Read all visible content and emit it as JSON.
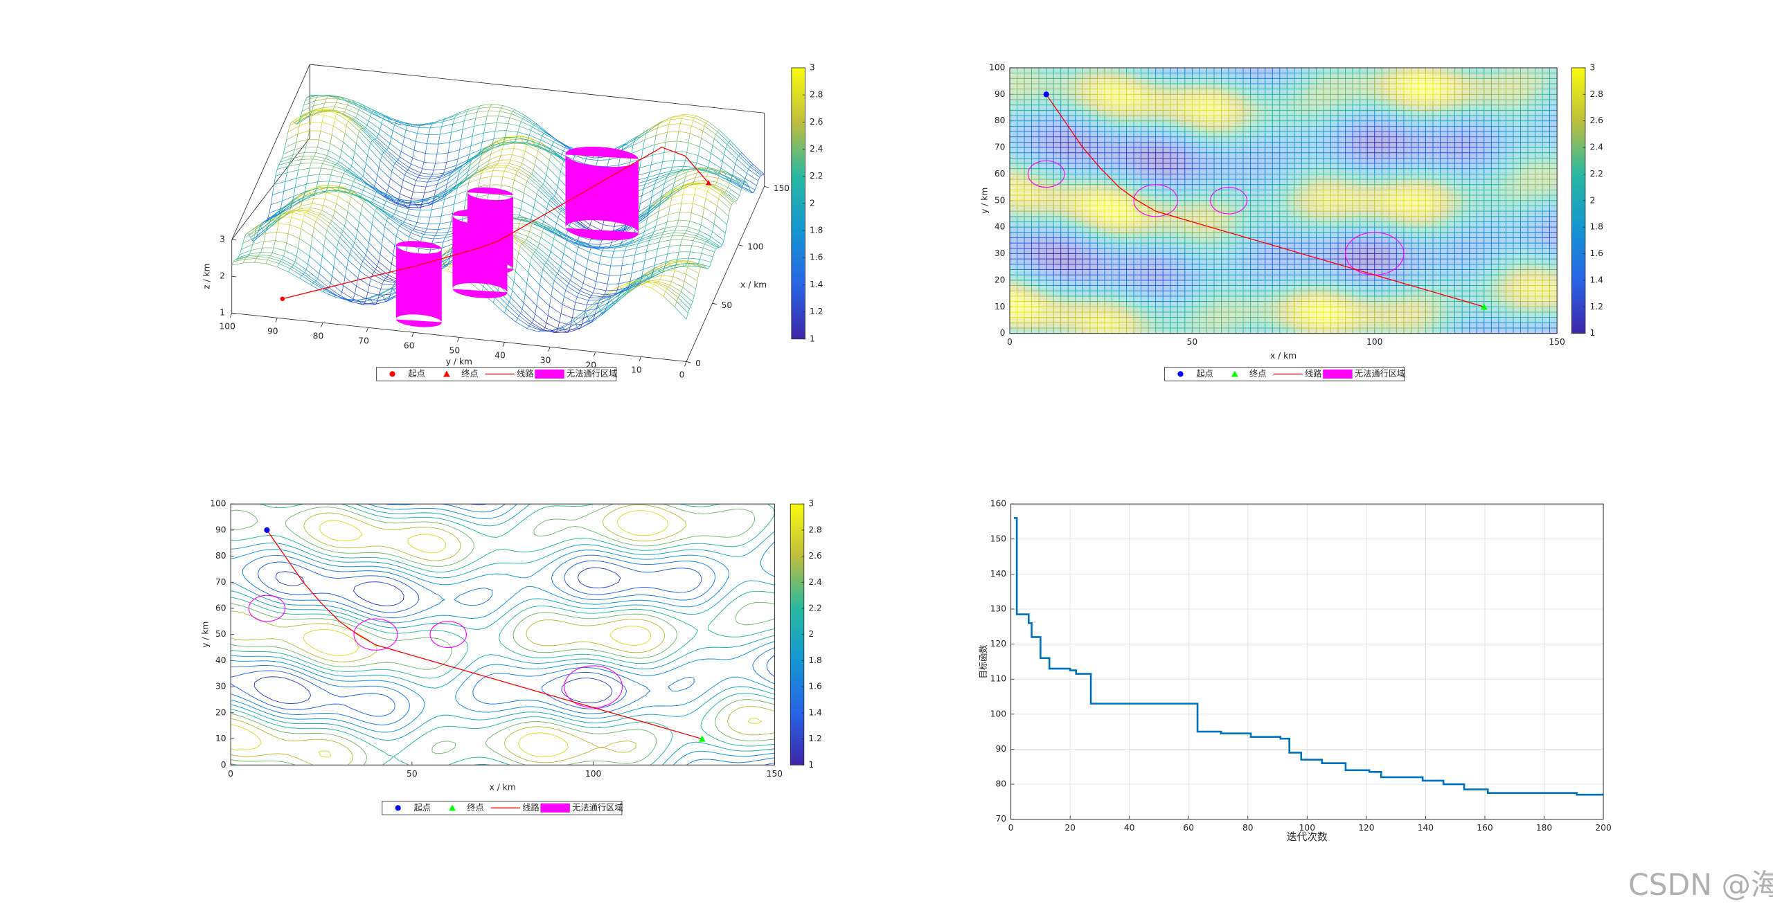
{
  "chart_data": [
    {
      "type": "surface3d",
      "xlabel": "x / km",
      "ylabel": "y / km",
      "zlabel": "z / km",
      "xlim": [
        0,
        150
      ],
      "ylim": [
        0,
        100
      ],
      "zlim": [
        1,
        3
      ],
      "xticks": [
        0,
        50,
        100,
        150
      ],
      "yticks": [
        0,
        10,
        20,
        30,
        40,
        50,
        60,
        70,
        80,
        90,
        100
      ],
      "zticks": [
        1,
        2,
        3
      ],
      "clim": [
        1,
        3
      ],
      "cticks": [
        1,
        1.2,
        1.4,
        1.6,
        1.8,
        2,
        2.2,
        2.4,
        2.6,
        2.8,
        3
      ],
      "start": {
        "name": "起点",
        "x": 10,
        "y": 90,
        "color": "#ff0000"
      },
      "end": {
        "name": "终点",
        "x": 130,
        "y": 10,
        "color": "#ff0000"
      },
      "route": {
        "name": "线路",
        "color": "#ff0000",
        "x": [
          10,
          15,
          20,
          25,
          30,
          35,
          40,
          50,
          60,
          70,
          80,
          90,
          100,
          110,
          120,
          130
        ],
        "y": [
          90,
          80,
          70,
          62,
          55,
          50,
          46,
          42,
          38,
          34,
          30,
          26,
          22,
          18,
          14,
          10
        ],
        "z": [
          1.2,
          1.5,
          1.8,
          2.0,
          2.2,
          2.3,
          2.4,
          2.5,
          2.6,
          2.7,
          2.8,
          2.9,
          3.0,
          3.1,
          2.6,
          1.6
        ]
      },
      "obstacles": {
        "name": "无法通行区域",
        "color": "#ff00ff",
        "circles": [
          {
            "x": 10,
            "y": 60,
            "r": 5
          },
          {
            "x": 40,
            "y": 50,
            "r": 6
          },
          {
            "x": 60,
            "y": 50,
            "r": 5
          },
          {
            "x": 100,
            "y": 30,
            "r": 8
          }
        ]
      }
    },
    {
      "type": "mesh2d",
      "xlabel": "x / km",
      "ylabel": "y / km",
      "xlim": [
        0,
        150
      ],
      "ylim": [
        0,
        100
      ],
      "xticks": [
        0,
        50,
        100,
        150
      ],
      "yticks": [
        0,
        10,
        20,
        30,
        40,
        50,
        60,
        70,
        80,
        90,
        100
      ],
      "clim": [
        1,
        3
      ],
      "cticks": [
        1,
        1.2,
        1.4,
        1.6,
        1.8,
        2,
        2.2,
        2.4,
        2.6,
        2.8,
        3
      ],
      "start": {
        "name": "起点",
        "x": 10,
        "y": 90,
        "color": "#0000ff"
      },
      "end": {
        "name": "终点",
        "x": 130,
        "y": 10,
        "color": "#00ff00"
      },
      "route": {
        "name": "线路",
        "color": "#ff0000",
        "x": [
          10,
          15,
          20,
          25,
          30,
          35,
          40,
          50,
          60,
          70,
          80,
          90,
          100,
          110,
          120,
          130
        ],
        "y": [
          90,
          80,
          70,
          62,
          55,
          50,
          46,
          42,
          38,
          34,
          30,
          26,
          22,
          18,
          14,
          10
        ]
      },
      "obstacles": {
        "name": "无法通行区域",
        "color": "#ff00ff",
        "circles": [
          {
            "x": 10,
            "y": 60,
            "r": 5
          },
          {
            "x": 40,
            "y": 50,
            "r": 6
          },
          {
            "x": 60,
            "y": 50,
            "r": 5
          },
          {
            "x": 100,
            "y": 30,
            "r": 8
          }
        ]
      }
    },
    {
      "type": "contour",
      "xlabel": "x / km",
      "ylabel": "y / km",
      "xlim": [
        0,
        150
      ],
      "ylim": [
        0,
        100
      ],
      "xticks": [
        0,
        50,
        100,
        150
      ],
      "yticks": [
        0,
        10,
        20,
        30,
        40,
        50,
        60,
        70,
        80,
        90,
        100
      ],
      "clim": [
        1,
        3
      ],
      "cticks": [
        1,
        1.2,
        1.4,
        1.6,
        1.8,
        2,
        2.2,
        2.4,
        2.6,
        2.8,
        3
      ],
      "start": {
        "name": "起点",
        "x": 10,
        "y": 90,
        "color": "#0000ff"
      },
      "end": {
        "name": "终点",
        "x": 130,
        "y": 10,
        "color": "#00ff00"
      },
      "route": {
        "name": "线路",
        "color": "#ff0000",
        "x": [
          10,
          15,
          20,
          25,
          30,
          35,
          40,
          50,
          60,
          70,
          80,
          90,
          100,
          110,
          120,
          130
        ],
        "y": [
          90,
          80,
          70,
          62,
          55,
          50,
          46,
          42,
          38,
          34,
          30,
          26,
          22,
          18,
          14,
          10
        ]
      },
      "obstacles": {
        "name": "无法通行区域",
        "color": "#ff00ff",
        "circles": [
          {
            "x": 10,
            "y": 60,
            "r": 5
          },
          {
            "x": 40,
            "y": 50,
            "r": 6
          },
          {
            "x": 60,
            "y": 50,
            "r": 5
          },
          {
            "x": 100,
            "y": 30,
            "r": 8
          }
        ]
      }
    },
    {
      "type": "line",
      "xlabel": "迭代次数",
      "ylabel": "目标函数",
      "step": "post",
      "grid": true,
      "xlim": [
        0,
        200
      ],
      "ylim": [
        70,
        160
      ],
      "xticks": [
        0,
        20,
        40,
        60,
        80,
        100,
        120,
        140,
        160,
        180,
        200
      ],
      "yticks": [
        70,
        80,
        90,
        100,
        110,
        120,
        130,
        140,
        150,
        160
      ],
      "color": "#0072bd",
      "x": [
        1,
        2,
        6,
        7,
        10,
        13,
        20,
        22,
        27,
        63,
        71,
        81,
        91,
        94,
        98,
        105,
        113,
        121,
        125,
        139,
        146,
        153,
        161,
        191,
        200
      ],
      "values": [
        156,
        128.5,
        126,
        122,
        116,
        113,
        112.5,
        111.5,
        103,
        95,
        94.5,
        93.5,
        93,
        89,
        87,
        86,
        84,
        83.5,
        82,
        81,
        80,
        78.5,
        77.5,
        77,
        77
      ]
    }
  ],
  "watermark": "CSDN @海神之光"
}
